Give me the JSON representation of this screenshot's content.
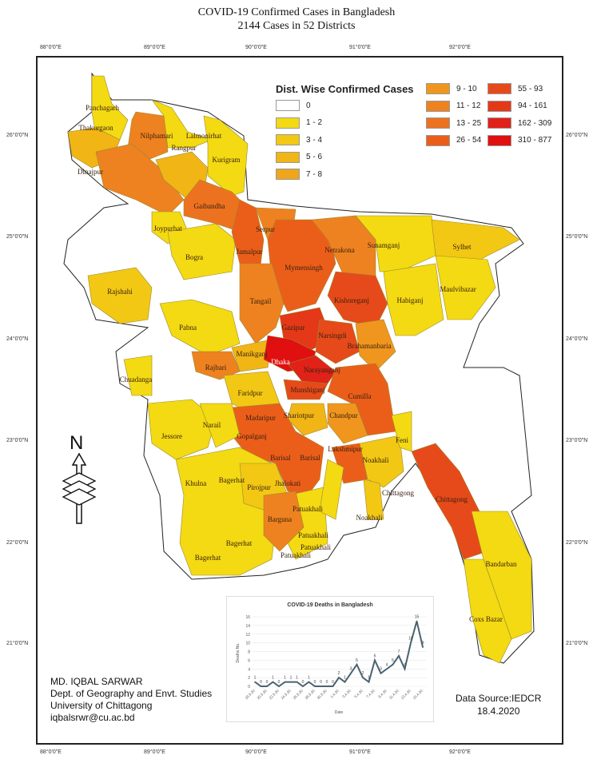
{
  "title": "COVID-19 Confirmed Cases in Bangladesh",
  "subtitle": "2144 Cases in 52 Districts",
  "longitudes": [
    "88°0'0\"E",
    "89°0'0\"E",
    "90°0'0\"E",
    "91°0'0\"E",
    "92°0'0\"E"
  ],
  "latitudes": [
    "26°0'0\"N",
    "25°0'0\"N",
    "24°0'0\"N",
    "23°0'0\"N",
    "22°0'0\"N",
    "21°0'0\"N"
  ],
  "legend": {
    "title": "Dist. Wise Confirmed Cases",
    "classes": [
      {
        "label": "0",
        "color": "#ffffff"
      },
      {
        "label": "1 - 2",
        "color": "#f3da12"
      },
      {
        "label": "3 - 4",
        "color": "#f2c814"
      },
      {
        "label": "5 - 6",
        "color": "#f1b516"
      },
      {
        "label": "7 - 8",
        "color": "#f0a61a"
      },
      {
        "label": "9 - 10",
        "color": "#f0961e"
      },
      {
        "label": "11 - 12",
        "color": "#ee8220"
      },
      {
        "label": "13 - 25",
        "color": "#ed7220"
      },
      {
        "label": "26 - 54",
        "color": "#eb5e1a"
      },
      {
        "label": "55 - 93",
        "color": "#e64a1a"
      },
      {
        "label": "94 - 161",
        "color": "#e43818"
      },
      {
        "label": "162 - 309",
        "color": "#e02218"
      },
      {
        "label": "310 - 877",
        "color": "#e01010"
      }
    ]
  },
  "district_labels": [
    "Panchagarh",
    "Thakurgaon",
    "Nilphamari",
    "Lalmonirhat",
    "Dinajpur",
    "Rangpur",
    "Kurigram",
    "Gaibandha",
    "Joypurhat",
    "Bogra",
    "Serpur",
    "Jamalpur",
    "Netrakona",
    "Mymensingh",
    "Sunamganj",
    "Sylhet",
    "Kishoreganj",
    "Tangail",
    "Habiganj",
    "Maulvibazar",
    "Rajshahi",
    "Pabna",
    "Gazipur",
    "Narsingdi",
    "Brahamanbaria",
    "Manikganj",
    "Dhaka",
    "Narayanganj",
    "Rajbari",
    "Chuadanga",
    "Munshiganj",
    "Faridpur",
    "Cumilla",
    "Madaripur",
    "Shariotpur",
    "Chandpur",
    "Jessore",
    "Narail",
    "Gopalganj",
    "Feni",
    "Lakshmipur",
    "Barisal",
    "Barisal",
    "Noakhali",
    "Khulna",
    "Bagerhat",
    "Pirojpur",
    "Jhalokati",
    "Chittagong",
    "Chittagong",
    "Patuakhali",
    "Noakhali",
    "Barguna",
    "Patuakhali",
    "Bagerhat",
    "Patuakhali",
    "Patuakhali",
    "Bagerhat",
    "Bandarban",
    "Coxs Bazar"
  ],
  "compass": "N",
  "credits": [
    "MD. IQBAL SARWAR",
    "Dept. of Geography and Envt. Studies",
    "University of Chittagong",
    "iqbalsrwr@cu.ac.bd"
  ],
  "source": {
    "label": "Data Source:IEDCR",
    "date": "18.4.2020"
  },
  "chart_data": {
    "type": "line",
    "title": "COVID-19 Deaths in Bangladesh",
    "xlabel": "Date",
    "ylabel": "Deaths No.",
    "ylim": [
      0,
      16
    ],
    "yticks": [
      0,
      2,
      4,
      6,
      8,
      10,
      12,
      14,
      16
    ],
    "grid": true,
    "xtick_labels": [
      "18.3.20",
      "20.3.20",
      "22.3.20",
      "24.3.20",
      "26.3.20",
      "28.3.20",
      "30.3.20",
      "1.4.20",
      "3.4.20",
      "5.4.20",
      "7.4.20",
      "9.4.20",
      "11.4.20",
      "13.4.20",
      "15.4.20"
    ],
    "values": [
      1,
      0,
      0,
      1,
      0,
      1,
      1,
      1,
      0,
      1,
      0,
      0,
      0,
      0,
      2,
      1,
      3,
      5,
      2,
      1,
      6,
      3,
      4,
      5,
      7,
      4,
      10,
      15,
      9
    ],
    "color": "#4a6270"
  }
}
